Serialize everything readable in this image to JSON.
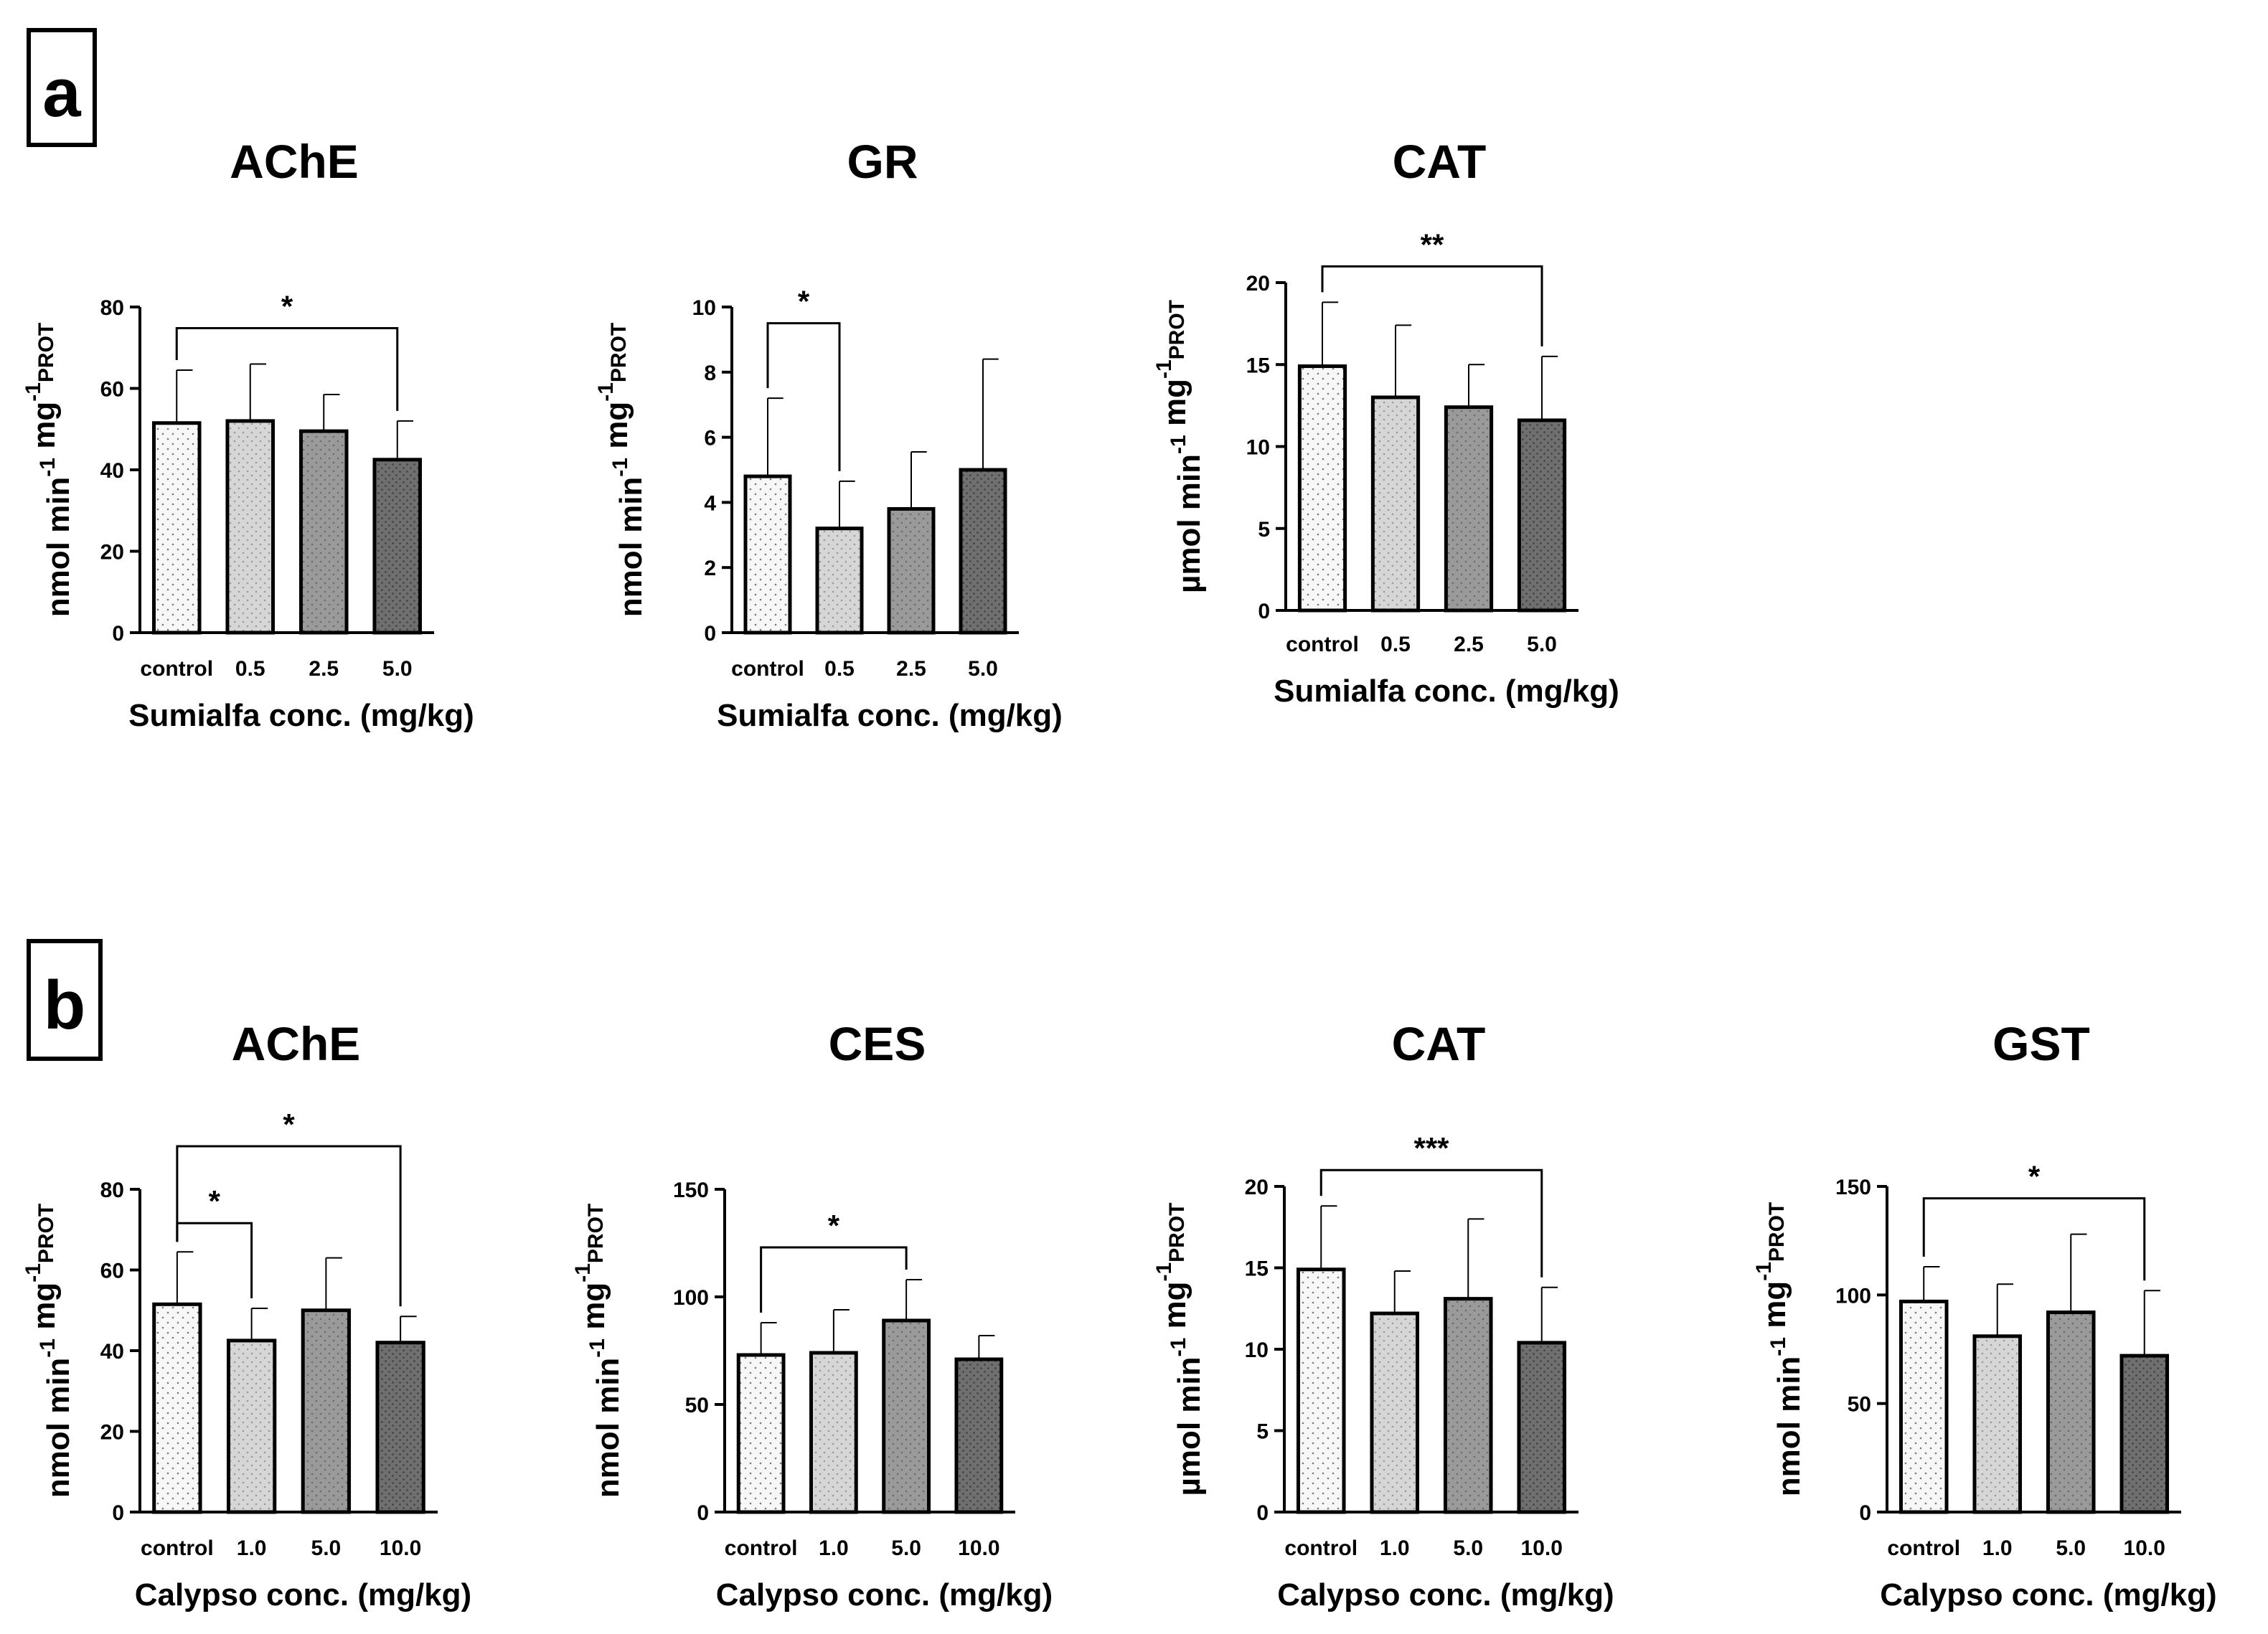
{
  "panels": [
    {
      "label": "a"
    },
    {
      "label": "b"
    }
  ],
  "colors": {
    "control": "#f7f7f7",
    "level1": "#d6d6d6",
    "level2": "#9a9a9a",
    "level3": "#6f6f6f",
    "stroke": "#000000"
  },
  "chart_data": [
    {
      "type": "bar",
      "panel": "a",
      "title": "AChE",
      "ylabel": "nmol min-1 mg-1 PROT",
      "xlabel": "Sumialfa conc. (mg/kg)",
      "categories": [
        "control",
        "0.5",
        "2.5",
        "5.0"
      ],
      "values": [
        51.5,
        52,
        49.5,
        42.5
      ],
      "errors": [
        13,
        14,
        9,
        9.5
      ],
      "ylim": [
        0,
        80
      ],
      "yticks": [
        0,
        20,
        40,
        60,
        80
      ],
      "significance": [
        {
          "from": 0,
          "to": 3,
          "label": "*"
        }
      ]
    },
    {
      "type": "bar",
      "panel": "a",
      "title": "GR",
      "ylabel": "nmol min-1 mg-1 PROT",
      "xlabel": "Sumialfa conc. (mg/kg)",
      "categories": [
        "control",
        "0.5",
        "2.5",
        "5.0"
      ],
      "values": [
        4.8,
        3.2,
        3.8,
        5.0
      ],
      "errors": [
        2.4,
        1.45,
        1.75,
        3.4
      ],
      "ylim": [
        0,
        10
      ],
      "yticks": [
        0,
        2,
        4,
        6,
        8,
        10
      ],
      "significance": [
        {
          "from": 0,
          "to": 1,
          "label": "*"
        }
      ]
    },
    {
      "type": "bar",
      "panel": "a",
      "title": "CAT",
      "ylabel": "µmol min-1 mg-1 PROT",
      "xlabel": "Sumialfa conc. (mg/kg)",
      "categories": [
        "control",
        "0.5",
        "2.5",
        "5.0"
      ],
      "values": [
        14.9,
        13.0,
        12.4,
        11.6
      ],
      "errors": [
        3.9,
        4.4,
        2.6,
        3.9
      ],
      "ylim": [
        0,
        20
      ],
      "yticks": [
        0,
        5,
        10,
        15,
        20
      ],
      "significance": [
        {
          "from": 0,
          "to": 3,
          "label": "**"
        }
      ]
    },
    {
      "type": "bar",
      "panel": "b",
      "title": "AChE",
      "ylabel": "nmol min-1 mg-1 PROT",
      "xlabel": "Calypso conc. (mg/kg)",
      "categories": [
        "control",
        "1.0",
        "5.0",
        "10.0"
      ],
      "values": [
        51.5,
        42.5,
        50,
        42
      ],
      "errors": [
        13,
        8,
        13,
        6.5
      ],
      "ylim": [
        0,
        80
      ],
      "yticks": [
        0,
        20,
        40,
        60,
        80
      ],
      "significance": [
        {
          "from": 0,
          "to": 1,
          "label": "*"
        },
        {
          "from": 0,
          "to": 3,
          "label": "*"
        }
      ]
    },
    {
      "type": "bar",
      "panel": "b",
      "title": "CES",
      "ylabel": "nmol min-1 mg-1 PROT",
      "xlabel": "Calypso conc. (mg/kg)",
      "categories": [
        "control",
        "1.0",
        "5.0",
        "10.0"
      ],
      "values": [
        73,
        74,
        89,
        71
      ],
      "errors": [
        15,
        20,
        19,
        11
      ],
      "ylim": [
        0,
        150
      ],
      "yticks": [
        0,
        50,
        100,
        150
      ],
      "significance": [
        {
          "from": 0,
          "to": 2,
          "label": "*"
        }
      ]
    },
    {
      "type": "bar",
      "panel": "b",
      "title": "CAT",
      "ylabel": "µmol min-1 mg-1 PROT",
      "xlabel": "Calypso conc. (mg/kg)",
      "categories": [
        "control",
        "1.0",
        "5.0",
        "10.0"
      ],
      "values": [
        14.9,
        12.2,
        13.1,
        10.4
      ],
      "errors": [
        3.9,
        2.6,
        4.9,
        3.4
      ],
      "ylim": [
        0,
        20
      ],
      "yticks": [
        0,
        5,
        10,
        15,
        20
      ],
      "significance": [
        {
          "from": 0,
          "to": 3,
          "label": "***"
        }
      ]
    },
    {
      "type": "bar",
      "panel": "b",
      "title": "GST",
      "ylabel": "nmol min-1 mg-1 PROT",
      "xlabel": "Calypso conc. (mg/kg)",
      "categories": [
        "control",
        "1.0",
        "5.0",
        "10.0"
      ],
      "values": [
        97,
        81,
        92,
        72
      ],
      "errors": [
        16,
        24,
        36,
        30
      ],
      "ylim": [
        0,
        150
      ],
      "yticks": [
        0,
        50,
        100,
        150
      ],
      "significance": [
        {
          "from": 0,
          "to": 3,
          "label": "*"
        }
      ]
    }
  ]
}
